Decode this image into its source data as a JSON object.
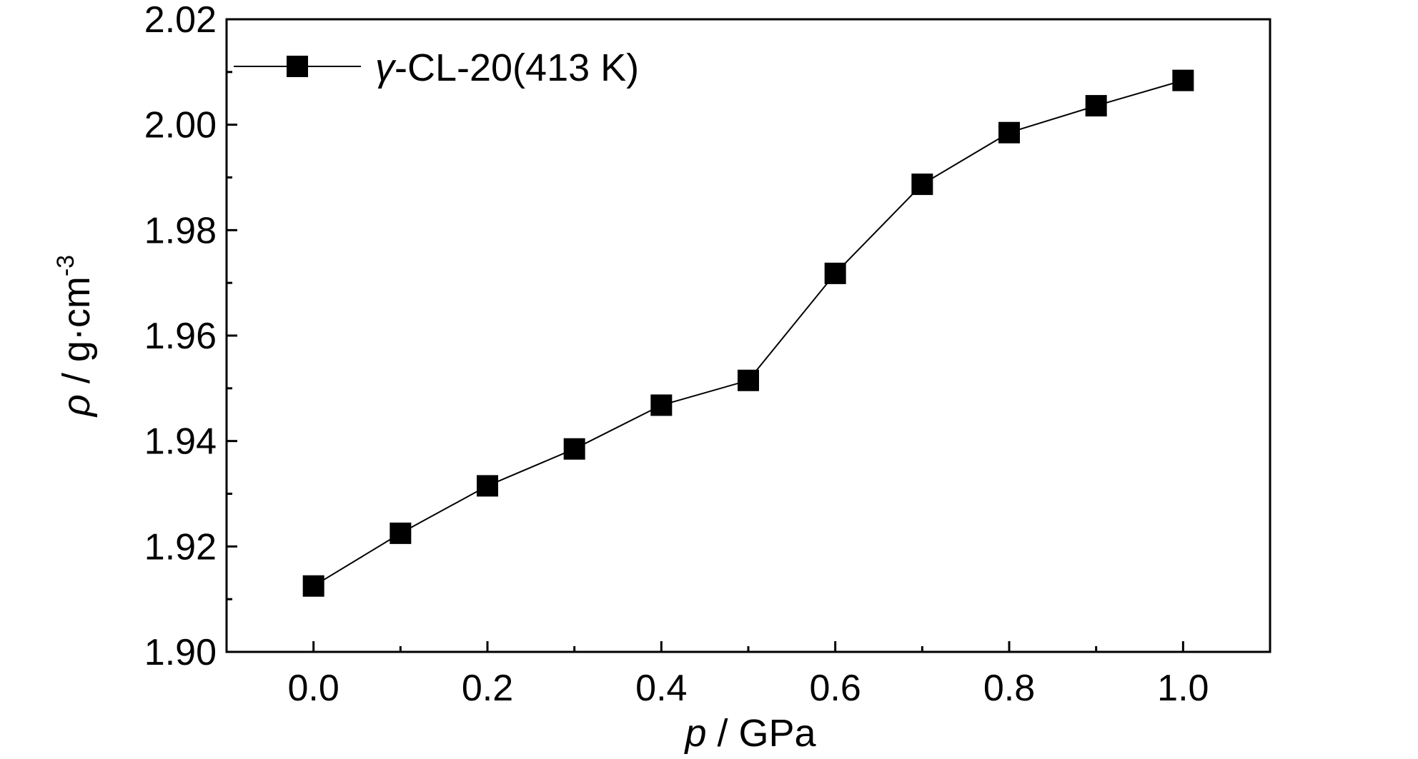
{
  "chart_data": {
    "type": "line",
    "x": [
      0.0,
      0.1,
      0.2,
      0.3,
      0.4,
      0.5,
      0.6,
      0.7,
      0.8,
      0.9,
      1.0
    ],
    "series": [
      {
        "name": "γ-CL-20(413 K)",
        "values": [
          1.9125,
          1.9225,
          1.9315,
          1.9385,
          1.9468,
          1.9515,
          1.9718,
          1.9887,
          1.9985,
          2.0036,
          2.0084
        ],
        "color": "#000000",
        "marker": "square"
      }
    ],
    "legend": {
      "symbol": "γ",
      "label_rest": "-CL-20(413 K)",
      "position": "top-left"
    },
    "xlabel": {
      "symbol": "p",
      "unit": " / GPa"
    },
    "ylabel": {
      "symbol": "ρ",
      "unit": " / g·cm",
      "superscript": "-3"
    },
    "xlim": [
      -0.1,
      1.1
    ],
    "ylim": [
      1.9,
      2.02
    ],
    "xticks": [
      "0.0",
      "0.2",
      "0.4",
      "0.6",
      "0.8",
      "1.0"
    ],
    "yticks": [
      "1.90",
      "1.92",
      "1.94",
      "1.96",
      "1.98",
      "2.00",
      "2.02"
    ],
    "grid": false
  }
}
